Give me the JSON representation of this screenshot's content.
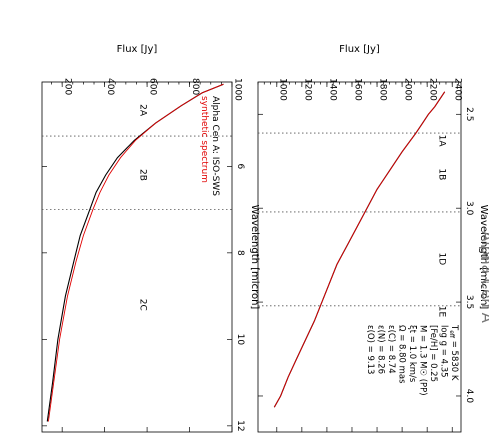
{
  "chart_data": [
    {
      "id": "top",
      "type": "line",
      "title": "Alpha Cen A",
      "xlabel": "Wavelength [micron]",
      "ylabel": "Flux [Jy]",
      "xlim": [
        2.36,
        4.08
      ],
      "ylim": [
        850,
        2470
      ],
      "x_ticks": [
        "2.5",
        "3.0",
        "3.5",
        "4.0"
      ],
      "y_ticks": [
        "1000",
        "1200",
        "1400",
        "1600",
        "1800",
        "2000",
        "2200",
        "2400"
      ],
      "x_tick_values": [
        2.5,
        3.0,
        3.5,
        4.0
      ],
      "y_tick_values": [
        1000,
        1200,
        1400,
        1600,
        1800,
        2000,
        2200,
        2400
      ],
      "band_dividers": [
        2.6,
        3.02,
        3.52
      ],
      "band_labels": [
        {
          "text": "1A",
          "x": 2.64,
          "y": 2300
        },
        {
          "text": "1B",
          "x": 2.82,
          "y": 2300
        },
        {
          "text": "1D",
          "x": 3.27,
          "y": 2300
        },
        {
          "text": "1E",
          "x": 3.55,
          "y": 2300
        }
      ],
      "annotations": [
        "T<sub>eff</sub> = 5830 K",
        "log g = 4.35",
        "[Fe/H] = 0.25",
        "M = 1.3 M☉ (PP)",
        "ξt = 1.0 km/s",
        "Ω = 8.80 mas",
        "ε(C) = 8.74",
        "ε(N) = 8.26",
        "ε(O) = 9.13"
      ],
      "series": [
        {
          "color": "#000000",
          "x": [
            2.38,
            2.42,
            2.46,
            2.5,
            2.55,
            2.6,
            2.7,
            2.8,
            2.9,
            3.0,
            3.1,
            3.2,
            3.3,
            3.4,
            3.5,
            3.6,
            3.7,
            3.8,
            3.9,
            4.0,
            4.06
          ],
          "y": [
            2340,
            2300,
            2260,
            2210,
            2160,
            2110,
            2000,
            1900,
            1800,
            1720,
            1640,
            1560,
            1480,
            1420,
            1360,
            1300,
            1230,
            1160,
            1090,
            1030,
            980
          ]
        },
        {
          "color": "#e00000",
          "x": [
            2.38,
            2.42,
            2.46,
            2.5,
            2.55,
            2.6,
            2.7,
            2.8,
            2.9,
            3.0,
            3.1,
            3.2,
            3.3,
            3.4,
            3.5,
            3.6,
            3.7,
            3.8,
            3.9,
            4.0,
            4.06
          ],
          "y": [
            2340,
            2300,
            2260,
            2210,
            2160,
            2110,
            2000,
            1900,
            1800,
            1720,
            1640,
            1560,
            1480,
            1420,
            1360,
            1300,
            1230,
            1160,
            1090,
            1030,
            980
          ]
        }
      ]
    },
    {
      "id": "bottom",
      "type": "line",
      "xlabel": "Wavelength [micron]",
      "ylabel": "Flux [Jy]",
      "xlim": [
        4.05,
        12.05
      ],
      "ylim": [
        105,
        1000
      ],
      "x_ticks": [
        "6",
        "8",
        "10",
        "12"
      ],
      "y_ticks": [
        "200",
        "400",
        "600",
        "800",
        "1000"
      ],
      "x_tick_values": [
        6,
        8,
        10,
        12
      ],
      "y_tick_values": [
        200,
        400,
        600,
        800,
        1000
      ],
      "band_dividers": [
        5.3,
        7.0
      ],
      "band_labels": [
        {
          "text": "2A",
          "x": 4.7,
          "y": 570
        },
        {
          "text": "2B",
          "x": 6.2,
          "y": 570
        },
        {
          "text": "2C",
          "x": 9.2,
          "y": 570
        }
      ],
      "legend": [
        "Alpha Cen A: ISO-SWS",
        "synthetic spectrum"
      ],
      "legend_colors": [
        "#000000",
        "#e00000"
      ],
      "series": [
        {
          "color": "#000000",
          "x": [
            4.1,
            4.3,
            4.6,
            5.0,
            5.4,
            5.8,
            6.2,
            6.6,
            7.0,
            7.6,
            8.2,
            9.0,
            10.0,
            11.0,
            11.9
          ],
          "y": [
            960,
            860,
            760,
            640,
            540,
            460,
            405,
            360,
            330,
            285,
            255,
            215,
            180,
            155,
            130
          ]
        },
        {
          "color": "#e00000",
          "x": [
            4.1,
            4.3,
            4.6,
            5.0,
            5.4,
            5.8,
            6.2,
            6.6,
            7.0,
            7.6,
            8.2,
            9.0,
            10.0,
            11.0,
            11.9
          ],
          "y": [
            960,
            860,
            760,
            640,
            545,
            475,
            420,
            378,
            345,
            300,
            265,
            225,
            188,
            160,
            135
          ]
        }
      ]
    }
  ]
}
